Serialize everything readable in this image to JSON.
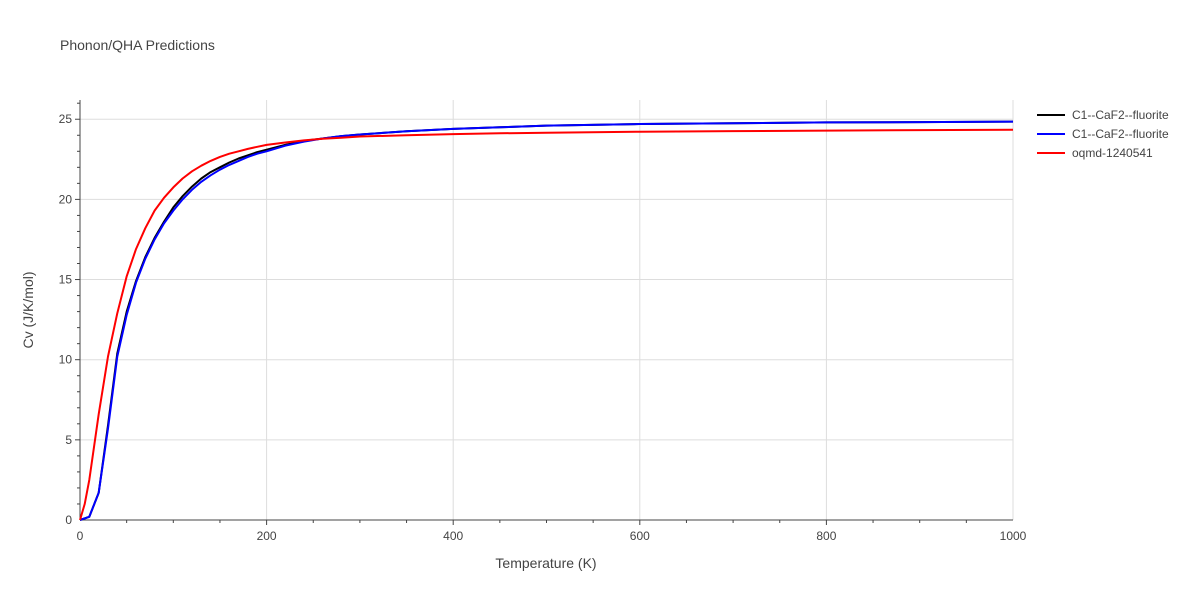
{
  "chart_data": {
    "type": "line",
    "title": "Phonon/QHA Predictions",
    "xlabel": "Temperature (K)",
    "ylabel": "Cv (J/K/mol)",
    "xlim": [
      0,
      1000
    ],
    "ylim": [
      0,
      26.2
    ],
    "xticks": [
      0,
      200,
      400,
      600,
      800,
      1000
    ],
    "yticks": [
      0,
      5,
      10,
      15,
      20,
      25
    ],
    "grid": true,
    "legend_position": "top-right",
    "series": [
      {
        "name": "C1--CaF2--fluorite",
        "color": "#000000",
        "x": [
          0,
          10,
          20,
          30,
          40,
          50,
          60,
          70,
          80,
          90,
          100,
          110,
          120,
          130,
          140,
          150,
          160,
          170,
          180,
          190,
          200,
          220,
          240,
          260,
          280,
          300,
          350,
          400,
          450,
          500,
          600,
          700,
          800,
          900,
          1000
        ],
        "y": [
          0,
          0.2,
          1.7,
          5.9,
          10.4,
          13.0,
          14.9,
          16.4,
          17.6,
          18.6,
          19.5,
          20.2,
          20.8,
          21.3,
          21.7,
          22.0,
          22.3,
          22.55,
          22.75,
          22.95,
          23.1,
          23.4,
          23.65,
          23.8,
          23.95,
          24.05,
          24.25,
          24.4,
          24.5,
          24.6,
          24.7,
          24.75,
          24.8,
          24.82,
          24.85
        ]
      },
      {
        "name": "C1--CaF2--fluorite",
        "color": "#0000ff",
        "x": [
          0,
          10,
          20,
          30,
          40,
          50,
          60,
          70,
          80,
          90,
          100,
          110,
          120,
          130,
          140,
          150,
          160,
          170,
          180,
          190,
          200,
          220,
          240,
          260,
          280,
          300,
          350,
          400,
          450,
          500,
          600,
          700,
          800,
          900,
          1000
        ],
        "y": [
          0,
          0.2,
          1.7,
          5.7,
          10.2,
          12.8,
          14.8,
          16.3,
          17.5,
          18.5,
          19.3,
          20.0,
          20.6,
          21.1,
          21.5,
          21.85,
          22.15,
          22.4,
          22.65,
          22.85,
          23.0,
          23.35,
          23.6,
          23.8,
          23.95,
          24.05,
          24.25,
          24.4,
          24.5,
          24.6,
          24.7,
          24.75,
          24.8,
          24.82,
          24.85
        ]
      },
      {
        "name": "oqmd-1240541",
        "color": "#ff0000",
        "x": [
          0,
          5,
          10,
          20,
          30,
          40,
          50,
          60,
          70,
          80,
          90,
          100,
          110,
          120,
          130,
          140,
          150,
          160,
          170,
          180,
          190,
          200,
          220,
          240,
          260,
          280,
          300,
          350,
          400,
          450,
          500,
          600,
          700,
          800,
          900,
          1000
        ],
        "y": [
          0,
          1.0,
          2.5,
          6.6,
          10.2,
          12.9,
          15.2,
          16.9,
          18.2,
          19.3,
          20.1,
          20.75,
          21.3,
          21.75,
          22.1,
          22.4,
          22.65,
          22.85,
          23.0,
          23.15,
          23.28,
          23.4,
          23.55,
          23.68,
          23.78,
          23.85,
          23.92,
          24.0,
          24.07,
          24.12,
          24.16,
          24.22,
          24.26,
          24.29,
          24.32,
          24.35
        ]
      }
    ]
  }
}
